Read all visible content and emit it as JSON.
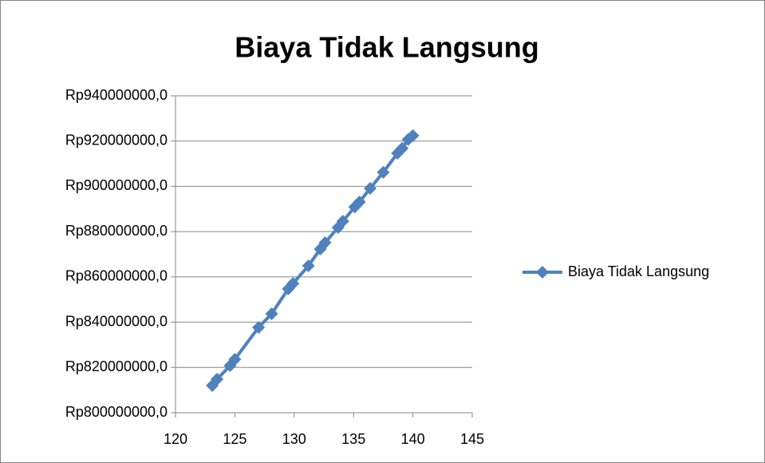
{
  "chart_data": {
    "type": "line",
    "title": "Biaya Tidak Langsung",
    "x": [
      123.1,
      123.5,
      124.6,
      125.0,
      127.0,
      128.1,
      129.5,
      129.9,
      131.2,
      132.2,
      132.6,
      133.7,
      134.1,
      135.1,
      135.5,
      136.4,
      137.5,
      138.7,
      139.1,
      139.6,
      140.0
    ],
    "series": [
      {
        "name": "Biaya Tidak Langsung",
        "color": "#4f81bd",
        "values": [
          812000000,
          814800000,
          820800000,
          823600000,
          837700000,
          843700000,
          854700000,
          857100000,
          864900000,
          872300000,
          875100000,
          881800000,
          884600000,
          890900000,
          893100000,
          899100000,
          906200000,
          914600000,
          916800000,
          920700000,
          922400000
        ]
      }
    ],
    "xlim": [
      120,
      145
    ],
    "xticks": [
      120,
      125,
      130,
      135,
      140,
      145
    ],
    "ylim": [
      800000000,
      940000000
    ],
    "yticks": [
      {
        "value": 800000000,
        "label": "Rp800000000,0"
      },
      {
        "value": 820000000,
        "label": "Rp820000000,0"
      },
      {
        "value": 840000000,
        "label": "Rp840000000,0"
      },
      {
        "value": 860000000,
        "label": "Rp860000000,0"
      },
      {
        "value": 880000000,
        "label": "Rp880000000,0"
      },
      {
        "value": 900000000,
        "label": "Rp900000000,0"
      },
      {
        "value": 920000000,
        "label": "Rp920000000,0"
      },
      {
        "value": 940000000,
        "label": "Rp940000000,0"
      }
    ],
    "grid": true,
    "legend": "right"
  }
}
